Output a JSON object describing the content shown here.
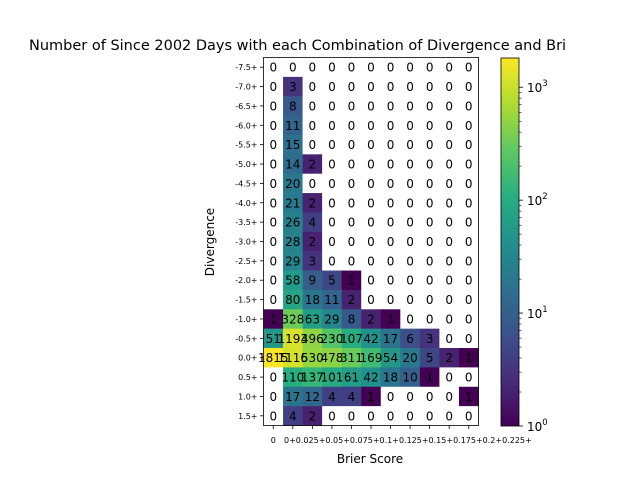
{
  "chart_data": {
    "type": "heatmap",
    "title": "Number of Since 2002 Days with each Combination of Divergence and Bri",
    "xlabel": "Brier Score",
    "ylabel": "Divergence",
    "x_ticks": [
      "0",
      "0+",
      "0.025+",
      "0.05+",
      "0.075+",
      "0.1+",
      "0.125+",
      "0.15+",
      "0.175+",
      "0.2+",
      "0.225+"
    ],
    "x_tick_display": "0+0.025+0.05+0.075+0.1+0.125+0.15+0.175+0.2+0.225+",
    "y_ticks": [
      "-7.5+",
      "-7.0+",
      "-6.5+",
      "-6.0+",
      "-5.5+",
      "-5.0+",
      "-4.5+",
      "-4.0+",
      "-3.5+",
      "-3.0+",
      "-2.5+",
      "-2.0+",
      "-1.5+",
      "-1.0+",
      "-0.5+",
      "0.0+",
      "0.5+",
      "1.0+",
      "1.5+"
    ],
    "values": [
      [
        0,
        0,
        0,
        0,
        0,
        0,
        0,
        0,
        0,
        0,
        0
      ],
      [
        0,
        3,
        0,
        0,
        0,
        0,
        0,
        0,
        0,
        0,
        0
      ],
      [
        0,
        8,
        0,
        0,
        0,
        0,
        0,
        0,
        0,
        0,
        0
      ],
      [
        0,
        11,
        0,
        0,
        0,
        0,
        0,
        0,
        0,
        0,
        0
      ],
      [
        0,
        15,
        0,
        0,
        0,
        0,
        0,
        0,
        0,
        0,
        0
      ],
      [
        0,
        14,
        2,
        0,
        0,
        0,
        0,
        0,
        0,
        0,
        0
      ],
      [
        0,
        20,
        0,
        0,
        0,
        0,
        0,
        0,
        0,
        0,
        0
      ],
      [
        0,
        21,
        2,
        0,
        0,
        0,
        0,
        0,
        0,
        0,
        0
      ],
      [
        0,
        26,
        4,
        0,
        0,
        0,
        0,
        0,
        0,
        0,
        0
      ],
      [
        0,
        28,
        2,
        0,
        0,
        0,
        0,
        0,
        0,
        0,
        0
      ],
      [
        0,
        29,
        3,
        0,
        0,
        0,
        0,
        0,
        0,
        0,
        0
      ],
      [
        0,
        58,
        9,
        5,
        1,
        0,
        0,
        0,
        0,
        0,
        0
      ],
      [
        0,
        80,
        18,
        11,
        2,
        0,
        0,
        0,
        0,
        0,
        0
      ],
      [
        1,
        328,
        63,
        29,
        8,
        2,
        1,
        0,
        0,
        0,
        0
      ],
      [
        51,
        1193,
        496,
        230,
        107,
        42,
        17,
        6,
        3,
        0,
        0
      ],
      [
        1815,
        1116,
        530,
        478,
        311,
        169,
        54,
        20,
        5,
        2,
        1
      ],
      [
        0,
        110,
        137,
        101,
        61,
        42,
        18,
        10,
        1,
        0,
        0
      ],
      [
        0,
        17,
        12,
        4,
        4,
        1,
        0,
        0,
        0,
        0,
        1
      ],
      [
        0,
        4,
        2,
        0,
        0,
        0,
        0,
        0,
        0,
        0,
        0
      ]
    ],
    "scale": "log",
    "colormap": "viridis",
    "colorbar": {
      "min": 1,
      "max": 1815,
      "ticks": [
        1,
        10,
        100,
        1000
      ],
      "tick_labels": [
        "10",
        "10",
        "10",
        "10"
      ],
      "tick_exponents": [
        "0",
        "1",
        "2",
        "3"
      ]
    },
    "zero_cell_color": "#ffffff",
    "grid": false
  }
}
